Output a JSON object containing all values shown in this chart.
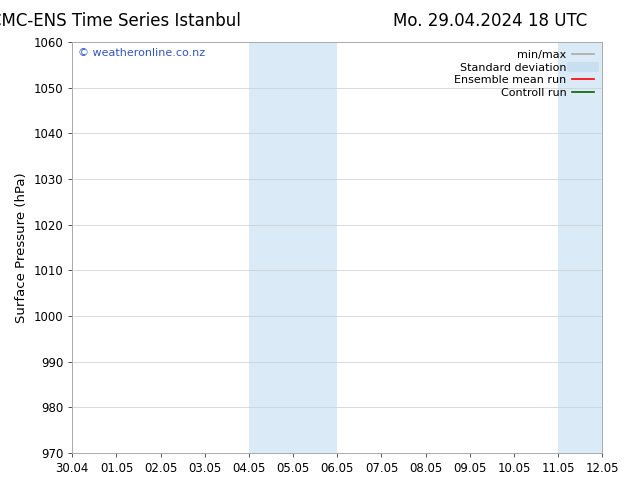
{
  "title_left": "CMC-ENS Time Series Istanbul",
  "title_right": "Mo. 29.04.2024 18 UTC",
  "ylabel": "Surface Pressure (hPa)",
  "ylim": [
    970,
    1060
  ],
  "yticks": [
    970,
    980,
    990,
    1000,
    1010,
    1020,
    1030,
    1040,
    1050,
    1060
  ],
  "xtick_labels": [
    "30.04",
    "01.05",
    "02.05",
    "03.05",
    "04.05",
    "05.05",
    "06.05",
    "07.05",
    "08.05",
    "09.05",
    "10.05",
    "11.05",
    "12.05"
  ],
  "bg_color": "#ffffff",
  "plot_bg_color": "#ffffff",
  "shaded_regions": [
    {
      "xstart": 4,
      "xend": 6,
      "color": "#daeaf7"
    },
    {
      "xstart": 11,
      "xend": 12,
      "color": "#daeaf7"
    }
  ],
  "watermark_text": "© weatheronline.co.nz",
  "watermark_color": "#3355bb",
  "legend_items": [
    {
      "label": "min/max",
      "color": "#aaaaaa",
      "lw": 1.2,
      "style": "solid"
    },
    {
      "label": "Standard deviation",
      "color": "#c8dff0",
      "lw": 7,
      "style": "solid"
    },
    {
      "label": "Ensemble mean run",
      "color": "#ff0000",
      "lw": 1.2,
      "style": "solid"
    },
    {
      "label": "Controll run",
      "color": "#006600",
      "lw": 1.2,
      "style": "solid"
    }
  ],
  "title_fontsize": 12,
  "tick_fontsize": 8.5,
  "ylabel_fontsize": 9.5,
  "watermark_fontsize": 8,
  "legend_fontsize": 8
}
